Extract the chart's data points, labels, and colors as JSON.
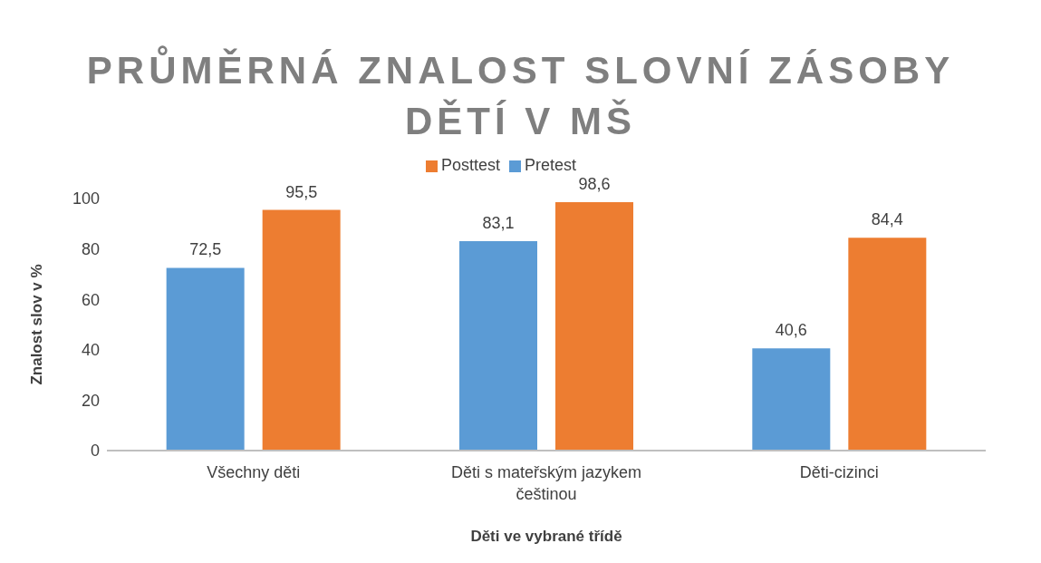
{
  "chart_data": {
    "type": "bar",
    "title": "PRŮMĚRNÁ ZNALOST SLOVNÍ ZÁSOBY DĚTÍ V MŠ",
    "xlabel": "Děti ve vybrané třídě",
    "ylabel": "Znalost slov v %",
    "categories": [
      "Všechny děti",
      "Děti s mateřským jazykem češtinou",
      "Děti-cizinci"
    ],
    "series": [
      {
        "name": "Pretest",
        "color": "#5b9bd5",
        "values": [
          72.5,
          83.1,
          40.6
        ],
        "value_labels": [
          "72,5",
          "83,1",
          "40,6"
        ]
      },
      {
        "name": "Posttest",
        "color": "#ed7d31",
        "values": [
          95.5,
          98.6,
          84.4
        ],
        "value_labels": [
          "95,5",
          "98,6",
          "84,4"
        ]
      }
    ],
    "ylim": [
      0,
      100
    ],
    "yticks": [
      0,
      20,
      40,
      60,
      80,
      100
    ],
    "grid": false,
    "legend": "top"
  }
}
